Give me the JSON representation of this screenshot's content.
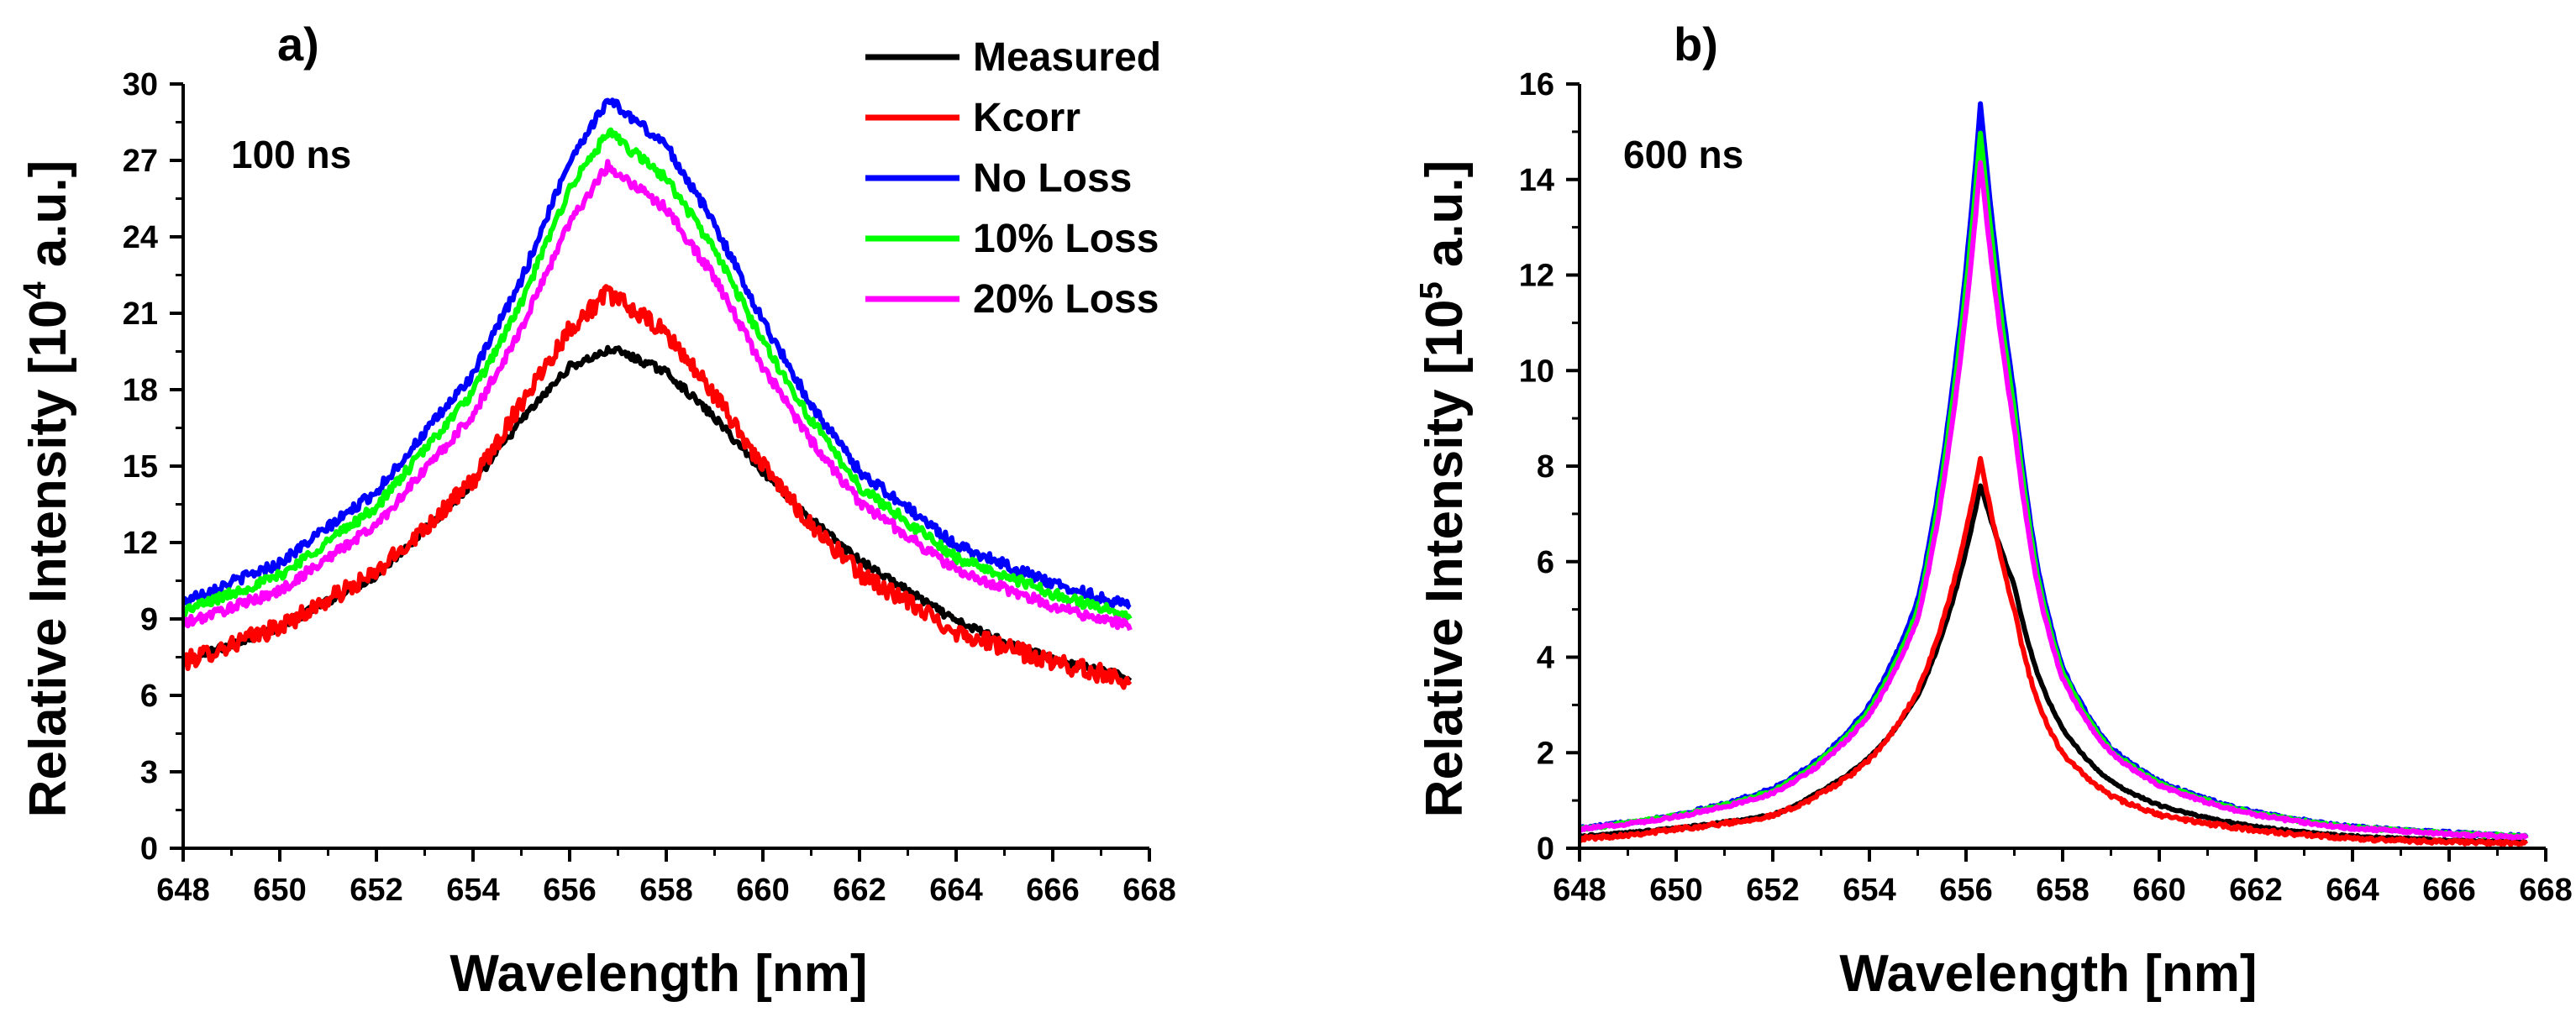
{
  "chart_data": [
    {
      "panel": "a)",
      "type": "line",
      "annotation": "100 ns",
      "xlabel": "Wavelength [nm]",
      "ylabel_main": "Relative Intensity [10",
      "ylabel_exp": "4",
      "ylabel_unit": " a.u.]",
      "xlim": [
        648,
        668
      ],
      "ylim": [
        0,
        30
      ],
      "xticks": [
        648,
        650,
        652,
        654,
        656,
        658,
        660,
        662,
        664,
        666,
        668
      ],
      "yticks": [
        0,
        3,
        6,
        9,
        12,
        15,
        18,
        21,
        24,
        27,
        30
      ],
      "profile": "voigt",
      "series": [
        {
          "name": "Measured",
          "color": "#000000",
          "x": [
            648,
            650,
            652,
            654,
            655,
            656,
            656.9,
            658,
            659,
            660,
            661,
            662,
            664,
            666,
            667.6
          ],
          "y": [
            7.3,
            8.7,
            10.7,
            14.3,
            16.8,
            18.9,
            19.6,
            18.7,
            16.9,
            14.8,
            12.9,
            11.3,
            8.9,
            7.4,
            6.7
          ],
          "noise": 0.15
        },
        {
          "name": "Kcorr",
          "color": "#ff0000",
          "x": [
            648,
            650,
            652,
            654,
            655,
            656,
            656.8,
            658,
            659,
            660,
            661,
            662,
            664,
            666,
            667.6
          ],
          "y": [
            7.3,
            8.7,
            10.8,
            14.4,
            17.5,
            20.4,
            21.8,
            20.2,
            17.8,
            15.0,
            12.7,
            10.8,
            8.5,
            7.3,
            6.6
          ],
          "noise": 0.35
        },
        {
          "name": "No Loss",
          "color": "#0000ff",
          "x": [
            648,
            650,
            652,
            654,
            655,
            656,
            656.8,
            658,
            659,
            660,
            661,
            662,
            664,
            666,
            667.6
          ],
          "y": [
            9.7,
            11.2,
            14.0,
            18.6,
            22.3,
            27.0,
            29.4,
            27.6,
            24.5,
            20.7,
            17.4,
            14.8,
            11.9,
            10.4,
            9.5
          ],
          "noise": 0.2
        },
        {
          "name": "10% Loss",
          "color": "#00ff00",
          "x": [
            648,
            650,
            652,
            654,
            655,
            656,
            656.8,
            658,
            659,
            660,
            661,
            662,
            664,
            666,
            667.6
          ],
          "y": [
            9.3,
            10.7,
            13.4,
            17.9,
            21.4,
            25.9,
            28.1,
            26.3,
            23.5,
            19.9,
            16.8,
            14.2,
            11.4,
            10.0,
            9.1
          ],
          "noise": 0.2
        },
        {
          "name": "20% Loss",
          "color": "#ff00ff",
          "x": [
            648,
            650,
            652,
            654,
            655,
            656,
            656.8,
            658,
            659,
            660,
            661,
            662,
            664,
            666,
            667.6
          ],
          "y": [
            8.8,
            10.1,
            12.7,
            17.0,
            20.4,
            24.6,
            26.8,
            25.1,
            22.4,
            18.9,
            16.0,
            13.6,
            10.9,
            9.5,
            8.7
          ],
          "noise": 0.2
        }
      ]
    },
    {
      "panel": "b)",
      "type": "line",
      "annotation": "600 ns",
      "xlabel": "Wavelength [nm]",
      "ylabel_main": "Relative Intensity [10",
      "ylabel_exp": "5",
      "ylabel_unit": " a.u.]",
      "xlim": [
        648,
        668
      ],
      "ylim": [
        0,
        16
      ],
      "xticks": [
        648,
        650,
        652,
        654,
        656,
        658,
        660,
        662,
        664,
        666,
        668
      ],
      "yticks": [
        0,
        2,
        4,
        6,
        8,
        10,
        12,
        14,
        16
      ],
      "profile": "lorentz",
      "series": [
        {
          "name": "Measured",
          "color": "#000000",
          "x": [
            648,
            650,
            652,
            653,
            654,
            655,
            655.7,
            656.3,
            657,
            657.5,
            658,
            659,
            660,
            662,
            664,
            667.6
          ],
          "y": [
            0.25,
            0.42,
            0.7,
            1.2,
            1.9,
            3.2,
            5.1,
            7.6,
            5.5,
            3.6,
            2.5,
            1.4,
            0.9,
            0.45,
            0.25,
            0.12
          ],
          "noise": 0.02
        },
        {
          "name": "Kcorr",
          "color": "#ff0000",
          "x": [
            648,
            650,
            652,
            653,
            654,
            655,
            655.7,
            656.3,
            657,
            657.5,
            658,
            659,
            660,
            662,
            664,
            667.6
          ],
          "y": [
            0.2,
            0.4,
            0.68,
            1.15,
            1.85,
            3.3,
            5.4,
            8.2,
            5.0,
            3.0,
            2.0,
            1.1,
            0.7,
            0.38,
            0.2,
            0.1
          ],
          "noise": 0.04
        },
        {
          "name": "No Loss",
          "color": "#0000ff",
          "x": [
            648,
            650,
            652,
            653,
            654,
            655,
            655.7,
            656.3,
            657,
            657.5,
            658,
            659,
            660,
            662,
            664,
            667.6
          ],
          "y": [
            0.42,
            0.7,
            1.25,
            1.9,
            3.0,
            5.2,
            9.5,
            15.6,
            9.5,
            5.8,
            3.8,
            2.1,
            1.4,
            0.75,
            0.45,
            0.25
          ],
          "noise": 0.03
        },
        {
          "name": "10% Loss",
          "color": "#00ff00",
          "x": [
            648,
            650,
            652,
            653,
            654,
            655,
            655.7,
            656.3,
            657,
            657.5,
            658,
            659,
            660,
            662,
            664,
            667.6
          ],
          "y": [
            0.41,
            0.68,
            1.2,
            1.85,
            2.9,
            5.0,
            9.2,
            15.0,
            9.2,
            5.6,
            3.7,
            2.05,
            1.36,
            0.73,
            0.44,
            0.24
          ],
          "noise": 0.03
        },
        {
          "name": "20% Loss",
          "color": "#ff00ff",
          "x": [
            648,
            650,
            652,
            653,
            654,
            655,
            655.7,
            656.3,
            657,
            657.5,
            658,
            659,
            660,
            662,
            664,
            667.6
          ],
          "y": [
            0.4,
            0.66,
            1.15,
            1.78,
            2.8,
            4.8,
            8.8,
            14.4,
            8.8,
            5.4,
            3.55,
            2.0,
            1.32,
            0.7,
            0.42,
            0.23
          ],
          "noise": 0.03
        }
      ]
    }
  ],
  "legend": {
    "entries": [
      {
        "label": "Measured",
        "color": "#000000"
      },
      {
        "label": "Kcorr",
        "color": "#ff0000"
      },
      {
        "label": "No Loss",
        "color": "#0000ff"
      },
      {
        "label": "10% Loss",
        "color": "#00ff00"
      },
      {
        "label": "20% Loss",
        "color": "#ff00ff"
      }
    ],
    "placement": "top-right of panel a"
  }
}
